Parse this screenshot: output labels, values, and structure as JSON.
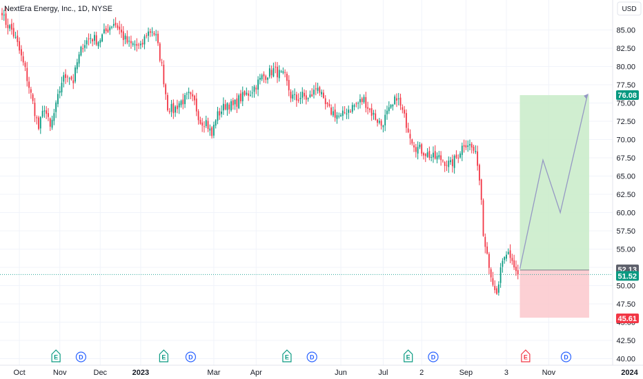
{
  "header": {
    "title": "NextEra Energy, Inc., 1D, NYSE",
    "currency": "USD"
  },
  "colors": {
    "up": "#089981",
    "down": "#f23645",
    "projection": "#9598c4",
    "target_zone": "#c8ebc8",
    "stop_zone": "#fcc8cc",
    "current_line": "#26a69a"
  },
  "chart_data": {
    "type": "candlestick",
    "ylim": [
      40,
      87
    ],
    "y_ticks": [
      40.0,
      42.5,
      45.0,
      47.5,
      50.0,
      52.5,
      55.0,
      57.5,
      60.0,
      62.5,
      65.0,
      67.5,
      70.0,
      72.5,
      75.0,
      77.5,
      80.0,
      82.5,
      85.0
    ],
    "y_tick_labels": [
      "40.00",
      "42.50",
      "45.00",
      "47.50",
      "50.00",
      "52.50",
      "55.00",
      "57.50",
      "60.00",
      "62.50",
      "65.00",
      "67.50",
      "70.00",
      "72.50",
      "75.00",
      "77.50",
      "80.00",
      "82.50",
      "85.00"
    ],
    "x_ticks": [
      {
        "label": "Oct",
        "i": 9
      },
      {
        "label": "Nov",
        "i": 30
      },
      {
        "label": "Dec",
        "i": 51
      },
      {
        "label": "2023",
        "i": 72,
        "bold": true
      },
      {
        "label": "Mar",
        "i": 110
      },
      {
        "label": "Apr",
        "i": 132
      },
      {
        "label": "Jun",
        "i": 176
      },
      {
        "label": "Jul",
        "i": 198
      },
      {
        "label": "2",
        "i": 218
      },
      {
        "label": "Sep",
        "i": 241
      },
      {
        "label": "3",
        "i": 262
      },
      {
        "label": "Nov",
        "i": 284
      },
      {
        "label": "2024",
        "i": 326,
        "bold": true
      }
    ],
    "close_anchors": [
      [
        0,
        87.0
      ],
      [
        2,
        86.0
      ],
      [
        5,
        85.0
      ],
      [
        8,
        83.0
      ],
      [
        12,
        79.5
      ],
      [
        16,
        75.0
      ],
      [
        19,
        71.5
      ],
      [
        22,
        74.5
      ],
      [
        25,
        71.5
      ],
      [
        28,
        74.5
      ],
      [
        31,
        78.0
      ],
      [
        34,
        79.0
      ],
      [
        37,
        78.0
      ],
      [
        39,
        80.5
      ],
      [
        42,
        83.0
      ],
      [
        46,
        84.0
      ],
      [
        50,
        83.5
      ],
      [
        53,
        84.5
      ],
      [
        56,
        85.5
      ],
      [
        58,
        86.0
      ],
      [
        60,
        85.5
      ],
      [
        63,
        84.0
      ],
      [
        66,
        83.0
      ],
      [
        69,
        83.0
      ],
      [
        72,
        82.5
      ],
      [
        75,
        84.5
      ],
      [
        78,
        85.0
      ],
      [
        80,
        84.0
      ],
      [
        83,
        80.0
      ],
      [
        86,
        74.5
      ],
      [
        89,
        74.0
      ],
      [
        92,
        75.0
      ],
      [
        95,
        75.5
      ],
      [
        97,
        76.0
      ],
      [
        100,
        75.0
      ],
      [
        103,
        72.5
      ],
      [
        106,
        72.5
      ],
      [
        109,
        70.5
      ],
      [
        111,
        73.0
      ],
      [
        114,
        74.0
      ],
      [
        117,
        75.0
      ],
      [
        120,
        74.5
      ],
      [
        123,
        75.5
      ],
      [
        126,
        76.0
      ],
      [
        129,
        76.5
      ],
      [
        132,
        77.5
      ],
      [
        135,
        78.5
      ],
      [
        138,
        79.0
      ],
      [
        141,
        79.5
      ],
      [
        144,
        79.0
      ],
      [
        147,
        78.5
      ],
      [
        150,
        76.0
      ],
      [
        153,
        75.5
      ],
      [
        156,
        76.0
      ],
      [
        159,
        75.5
      ],
      [
        162,
        76.5
      ],
      [
        164,
        77.5
      ],
      [
        167,
        75.0
      ],
      [
        170,
        74.0
      ],
      [
        173,
        73.5
      ],
      [
        176,
        73.0
      ],
      [
        179,
        74.0
      ],
      [
        182,
        74.5
      ],
      [
        185,
        75.0
      ],
      [
        188,
        75.5
      ],
      [
        191,
        74.0
      ],
      [
        194,
        73.0
      ],
      [
        197,
        72.0
      ],
      [
        200,
        73.5
      ],
      [
        203,
        74.5
      ],
      [
        205,
        76.0
      ],
      [
        207,
        74.5
      ],
      [
        209,
        73.0
      ],
      [
        211,
        71.5
      ],
      [
        213,
        70.0
      ],
      [
        215,
        69.0
      ],
      [
        218,
        68.5
      ],
      [
        221,
        68.0
      ],
      [
        224,
        67.5
      ],
      [
        227,
        67.5
      ],
      [
        230,
        67.0
      ],
      [
        233,
        66.5
      ],
      [
        236,
        67.5
      ],
      [
        238,
        68.5
      ],
      [
        240,
        69.5
      ],
      [
        242,
        69.5
      ],
      [
        245,
        68.5
      ],
      [
        247,
        67.0
      ],
      [
        249,
        62.0
      ],
      [
        250,
        57.5
      ],
      [
        252,
        54.5
      ],
      [
        254,
        51.5
      ],
      [
        255,
        49.5
      ],
      [
        257,
        48.5
      ],
      [
        259,
        52.0
      ],
      [
        261,
        53.5
      ],
      [
        263,
        54.5
      ],
      [
        265,
        53.5
      ],
      [
        266,
        52.5
      ],
      [
        268,
        51.52
      ]
    ],
    "events": [
      {
        "label": "E",
        "i": 28
      },
      {
        "label": "D",
        "i": 41
      },
      {
        "label": "E",
        "i": 84
      },
      {
        "label": "D",
        "i": 98
      },
      {
        "label": "E",
        "i": 148
      },
      {
        "label": "D",
        "i": 161
      },
      {
        "label": "E",
        "i": 211
      },
      {
        "label": "D",
        "i": 224
      },
      {
        "label": "E",
        "i": 272,
        "upcoming": true
      },
      {
        "label": "D",
        "i": 293
      }
    ],
    "position_tool": {
      "entry": 52.13,
      "target": 76.08,
      "stop": 45.61,
      "start_i": 269,
      "end_i": 305,
      "projection": [
        [
          269,
          52.3
        ],
        [
          281,
          67.2
        ],
        [
          290,
          60.0
        ],
        [
          304,
          76.0
        ]
      ]
    },
    "last_price": 51.52,
    "price_labels": [
      {
        "value": "76.08",
        "price": 76.08,
        "color": "#089981"
      },
      {
        "value": "52.13",
        "price": 52.13,
        "color": "#5d606b"
      },
      {
        "value": "51.52",
        "price": 51.52,
        "color": "#089981"
      },
      {
        "value": "45.61",
        "price": 45.61,
        "color": "#f23645"
      }
    ]
  }
}
